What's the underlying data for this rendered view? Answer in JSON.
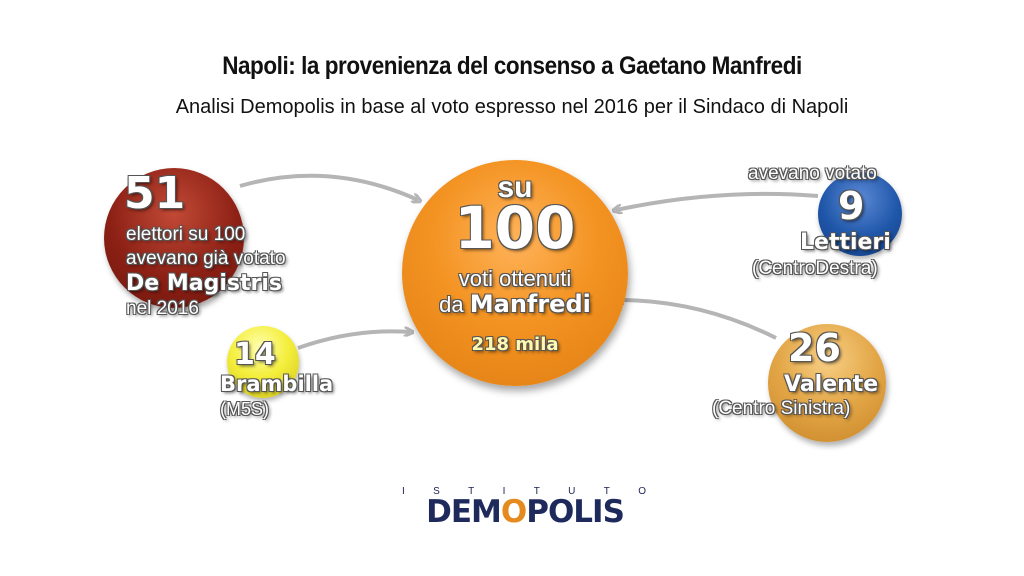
{
  "title": "Napoli: la provenienza del consenso a Gaetano Manfredi",
  "subtitle": "Analisi Demopolis in base al voto espresso nel 2016 per il Sindaco di Napoli",
  "center": {
    "line1": "su",
    "number": "100",
    "line3": "voti ottenuti",
    "line4_prefix": "da ",
    "line4_name": "Manfredi",
    "total": "218 mila",
    "color": "#f39322"
  },
  "sources": [
    {
      "id": "magistris",
      "value": "51",
      "line1": "elettori su 100",
      "line2": "avevano già votato",
      "name": "De Magistris",
      "line4": "nel 2016",
      "color": "#8c2015"
    },
    {
      "id": "brambilla",
      "value": "14",
      "name": "Brambilla",
      "party": "(M5S)",
      "color": "#f4ee3c"
    },
    {
      "id": "lettieri",
      "pre": "avevano votato",
      "value": "9",
      "name": "Lettieri",
      "party": "(CentroDestra)",
      "color": "#1f56a8"
    },
    {
      "id": "valente",
      "value": "26",
      "name": "Valente",
      "party": "(Centro Sinistra)",
      "color": "#e2a545"
    }
  ],
  "logo": {
    "top_letters": [
      "I",
      "S",
      "T",
      "I",
      "T",
      "U",
      "T",
      "O"
    ],
    "part1": "DEM",
    "part_o": "O",
    "part2": "POLIS"
  }
}
